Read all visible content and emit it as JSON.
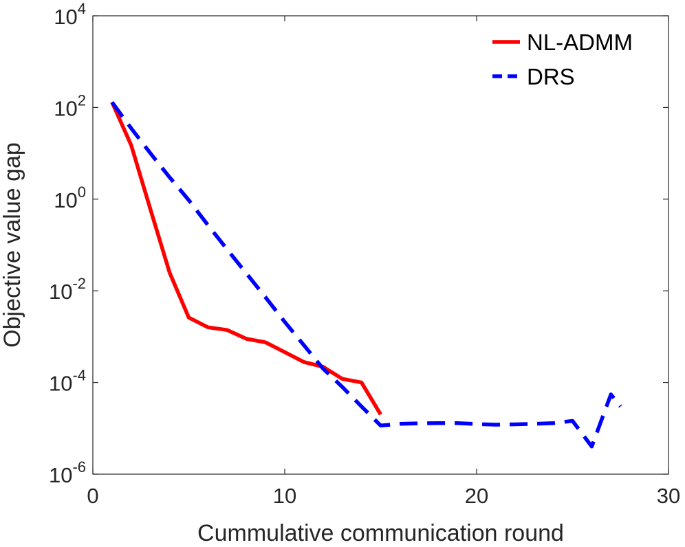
{
  "chart_data": {
    "type": "line",
    "title": "",
    "xlabel": "Cummulative communication round",
    "ylabel": "Objective value gap",
    "xlim": [
      0,
      30
    ],
    "ylim": [
      1e-06,
      10000.0
    ],
    "yscale": "log",
    "grid": false,
    "legend_position": "top-right",
    "x_ticks": [
      {
        "value": 0,
        "label": "0"
      },
      {
        "value": 10,
        "label": "10"
      },
      {
        "value": 20,
        "label": "20"
      },
      {
        "value": 30,
        "label": "30"
      }
    ],
    "y_ticks": [
      {
        "value": 1e-06,
        "base": "10",
        "exponent": "-6"
      },
      {
        "value": 0.0001,
        "base": "10",
        "exponent": "-4"
      },
      {
        "value": 0.01,
        "base": "10",
        "exponent": "-2"
      },
      {
        "value": 1.0,
        "base": "10",
        "exponent": "0"
      },
      {
        "value": 100.0,
        "base": "10",
        "exponent": "2"
      },
      {
        "value": 10000.0,
        "base": "10",
        "exponent": "4"
      }
    ],
    "series": [
      {
        "name": "NL-ADMM",
        "color": "#ff0000",
        "style": "solid",
        "x": [
          1,
          2,
          3,
          4,
          5,
          6,
          7,
          8,
          9,
          10,
          11,
          12,
          13,
          14,
          15
        ],
        "y": [
          130,
          15,
          0.6,
          0.025,
          0.0026,
          0.0016,
          0.0014,
          0.0009,
          0.00075,
          0.00046,
          0.00028,
          0.00022,
          0.00012,
          0.0001,
          2e-05
        ]
      },
      {
        "name": "DRS",
        "color": "#0000ff",
        "style": "dashed",
        "x": [
          1,
          2,
          3,
          4,
          5,
          6,
          7,
          8,
          9,
          10,
          11,
          12,
          13,
          14,
          15,
          16,
          17,
          18,
          19,
          20,
          21,
          22,
          23,
          24,
          25,
          26,
          27,
          27.5
        ],
        "y": [
          130,
          35,
          10,
          3,
          0.95,
          0.27,
          0.08,
          0.024,
          0.0072,
          0.0021,
          0.00065,
          0.0002,
          8e-05,
          3e-05,
          1.15e-05,
          1.25e-05,
          1.28e-05,
          1.3e-05,
          1.3e-05,
          1.24e-05,
          1.2e-05,
          1.22e-05,
          1.25e-05,
          1.3e-05,
          1.45e-05,
          4e-06,
          5.5e-05,
          3e-05
        ]
      }
    ]
  }
}
